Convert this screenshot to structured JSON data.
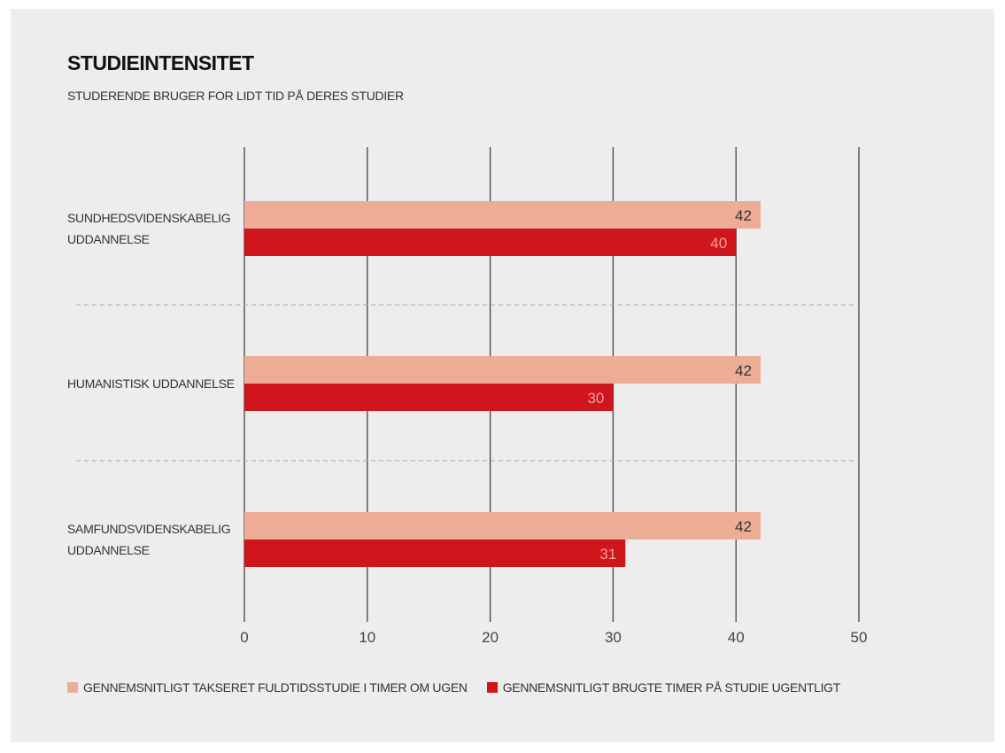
{
  "title": "STUDIEINTENSITET",
  "subtitle": "STUDERENDE BRUGER FOR LIDT TID PÅ DERES STUDIER",
  "colors": {
    "background": "#ededed",
    "series_1": "#edac96",
    "series_2": "#cf161d",
    "axis": "#444444",
    "separator": "#aaaaaa"
  },
  "chart_data": {
    "type": "bar",
    "orientation": "horizontal",
    "categories": [
      "SUNDHEDSVIDENSKABELIG UDDANNELSE",
      "HUMANISTISK UDDANNELSE",
      "SAMFUNDSVIDENSKABELIG UDDANNELSE"
    ],
    "category_lines": [
      [
        "SUNDHEDSVIDENSKABELIG",
        "UDDANNELSE"
      ],
      [
        "HUMANISTISK UDDANNELSE"
      ],
      [
        "SAMFUNDSVIDENSKABELIG",
        "UDDANNELSE"
      ]
    ],
    "series": [
      {
        "name": "GENNEMSNITLIGT TAKSERET FULDTIDSSTUDIE I TIMER OM UGEN",
        "values": [
          42,
          42,
          42
        ]
      },
      {
        "name": "GENNEMSNITLIGT BRUGTE TIMER PÅ STUDIE UGENTLIGT",
        "values": [
          40,
          30,
          31
        ]
      }
    ],
    "xlim": [
      0,
      50
    ],
    "xticks": [
      0,
      10,
      20,
      30,
      40,
      50
    ],
    "grid": true,
    "data_labels": true,
    "legend_position": "bottom-left"
  }
}
